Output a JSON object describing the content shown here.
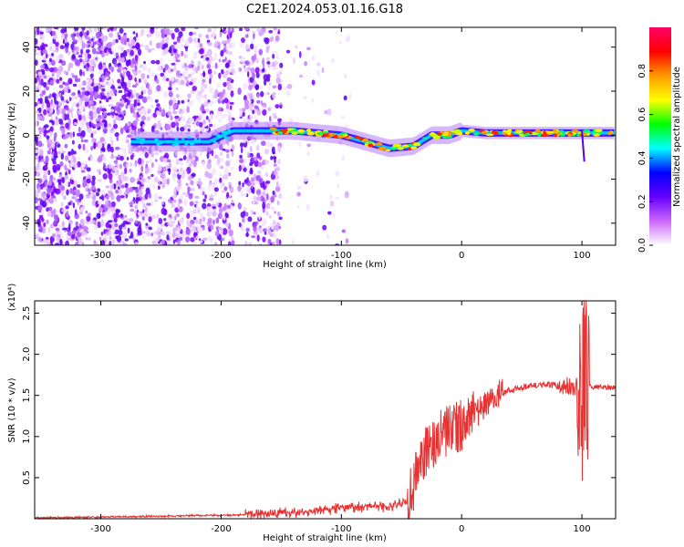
{
  "figure": {
    "title": "C2E1.2024.053.01.16.G18"
  },
  "chart_data": [
    {
      "type": "heatmap",
      "xlabel": "Height of straight line (km)",
      "ylabel": "Frequency (Hz)",
      "xlim": [
        -355,
        128
      ],
      "ylim": [
        -50,
        49
      ],
      "x_ticks": [
        -300,
        -200,
        -100,
        0,
        100
      ],
      "y_ticks": [
        -40,
        -20,
        0,
        20,
        40
      ],
      "colorbar": {
        "label": "Normalized spectral amplitude",
        "range": [
          0,
          1
        ],
        "ticks": [
          0.0,
          0.2,
          0.4,
          0.6,
          0.8
        ],
        "colormap": [
          "#ffffff",
          "#cc66ff",
          "#6600ff",
          "#0000ff",
          "#00ffff",
          "#00ff00",
          "#ffff00",
          "#ff9900",
          "#ff0000",
          "#ff0066"
        ]
      },
      "ridge": {
        "description_points_x": [
          -270,
          -240,
          -210,
          -190,
          -160,
          -140,
          -120,
          -100,
          -80,
          -60,
          -40,
          -25,
          -10,
          0,
          20,
          50,
          80,
          100,
          128
        ],
        "frequency_y": [
          -3,
          -3,
          -3,
          2,
          2,
          2,
          1,
          0,
          -3,
          -6,
          -5,
          0,
          0,
          2,
          1,
          1,
          1,
          1,
          1
        ]
      }
    },
    {
      "type": "line",
      "xlabel": "Height of straight line (km)",
      "ylabel": "SNR (10 * v/v)",
      "scale_label": "(x10⁴)",
      "xlim": [
        -355,
        128
      ],
      "ylim": [
        0,
        2.65
      ],
      "x_ticks": [
        -300,
        -200,
        -100,
        0,
        100
      ],
      "y_ticks": [
        0.5,
        1.0,
        1.5,
        2.0,
        2.5
      ],
      "line_color": "#e83232",
      "series": [
        {
          "x": [
            -355,
            -300,
            -250,
            -220,
            -200,
            -180,
            -160,
            -140,
            -120,
            -100,
            -80,
            -60,
            -45,
            -40,
            -35,
            -25,
            -15,
            -5,
            0,
            10,
            20,
            30,
            40,
            50,
            60,
            70,
            80,
            90,
            98,
            100,
            102,
            105,
            108,
            115,
            128
          ],
          "y": [
            0.01,
            0.02,
            0.03,
            0.04,
            0.04,
            0.05,
            0.06,
            0.07,
            0.1,
            0.13,
            0.15,
            0.15,
            0.2,
            0.4,
            0.7,
            0.9,
            1.05,
            1.1,
            1.15,
            1.25,
            1.38,
            1.5,
            1.57,
            1.6,
            1.62,
            1.63,
            1.62,
            1.6,
            1.62,
            1.5,
            2.2,
            1.65,
            1.6,
            1.6,
            1.6
          ]
        }
      ]
    }
  ]
}
